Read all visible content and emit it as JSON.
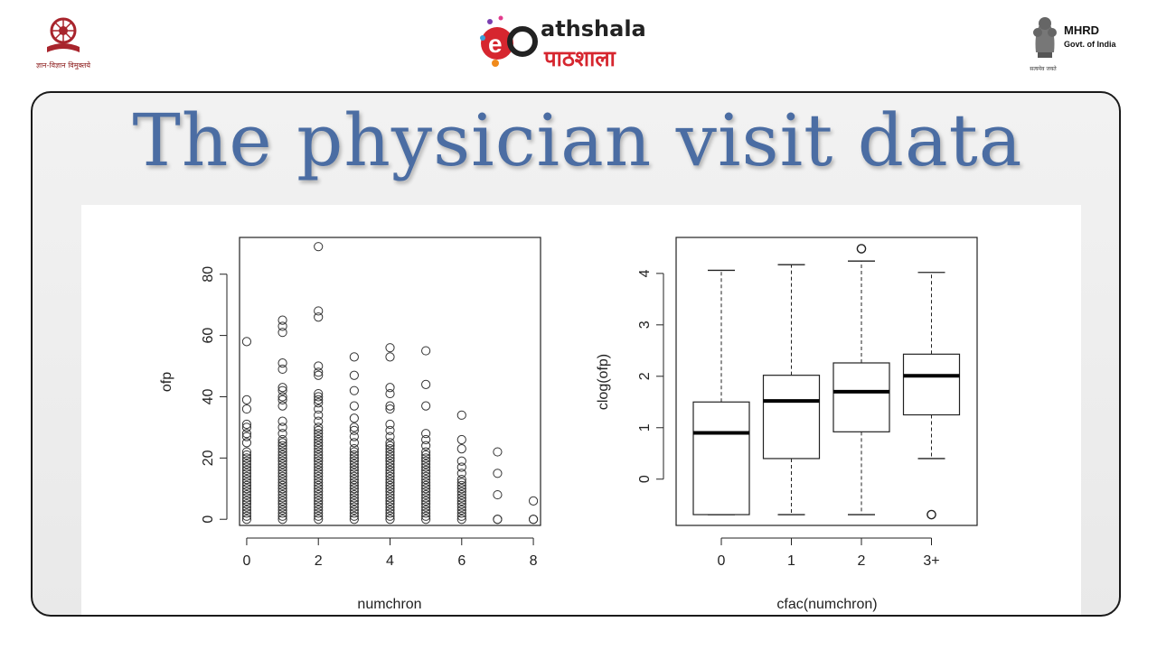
{
  "header": {
    "left_logo_text": "ज्ञान-विज्ञान विमुक्तये",
    "center_logo_line1": "athshala",
    "center_logo_line2": "पाठशाला",
    "right_logo_title": "MHRD",
    "right_logo_subtitle": "Govt. of India",
    "right_logo_motto": "सत्यमेव जयते"
  },
  "slide": {
    "title": "The physician visit data"
  },
  "chart_data": [
    {
      "type": "scatter",
      "xlabel": "numchron",
      "ylabel": "ofp",
      "xlim": [
        -0.2,
        8.2
      ],
      "ylim": [
        -2,
        92
      ],
      "xticks": [
        0,
        2,
        4,
        6,
        8
      ],
      "yticks": [
        0,
        20,
        40,
        60,
        80
      ],
      "columns": [
        {
          "x": 0,
          "dense_max": 22,
          "extra": [
            25,
            27,
            28,
            30,
            31,
            36,
            39,
            58
          ]
        },
        {
          "x": 1,
          "dense_max": 26,
          "extra": [
            28,
            30,
            32,
            37,
            39,
            40,
            42,
            43,
            49,
            51,
            61,
            63,
            65
          ]
        },
        {
          "x": 2,
          "dense_max": 30,
          "extra": [
            32,
            34,
            36,
            38,
            39,
            40,
            41,
            47,
            48,
            50,
            66,
            68,
            89
          ]
        },
        {
          "x": 3,
          "dense_max": 23,
          "extra": [
            25,
            27,
            29,
            30,
            33,
            37,
            42,
            47,
            53
          ]
        },
        {
          "x": 4,
          "dense_max": 25,
          "extra": [
            27,
            29,
            31,
            36,
            37,
            41,
            43,
            53,
            56
          ]
        },
        {
          "x": 5,
          "dense_max": 21,
          "extra": [
            22,
            24,
            26,
            28,
            37,
            44,
            55
          ]
        },
        {
          "x": 6,
          "dense_max": 13,
          "extra": [
            15,
            17,
            19,
            23,
            26,
            34
          ]
        },
        {
          "x": 7,
          "dense_max": 0,
          "extra": [
            0,
            8,
            15,
            22
          ]
        },
        {
          "x": 8,
          "dense_max": 0,
          "extra": [
            0,
            6
          ]
        }
      ]
    },
    {
      "type": "box",
      "xlabel": "cfac(numchron)",
      "ylabel": "clog(ofp)",
      "categories": [
        "0",
        "1",
        "2",
        "3+"
      ],
      "ylim": [
        -0.9,
        4.7
      ],
      "yticks": [
        0,
        1,
        2,
        3,
        4
      ],
      "boxes": [
        {
          "lower_whisker": -0.69,
          "q1": -0.69,
          "median": 0.9,
          "q3": 1.5,
          "upper_whisker": 4.06,
          "outliers": []
        },
        {
          "lower_whisker": -0.69,
          "q1": 0.4,
          "median": 1.52,
          "q3": 2.02,
          "upper_whisker": 4.17,
          "outliers": []
        },
        {
          "lower_whisker": -0.69,
          "q1": 0.92,
          "median": 1.7,
          "q3": 2.26,
          "upper_whisker": 4.24,
          "outliers": [
            4.48
          ]
        },
        {
          "lower_whisker": 0.4,
          "q1": 1.25,
          "median": 2.01,
          "q3": 2.43,
          "upper_whisker": 4.02,
          "outliers": [
            -0.69
          ]
        }
      ]
    }
  ]
}
